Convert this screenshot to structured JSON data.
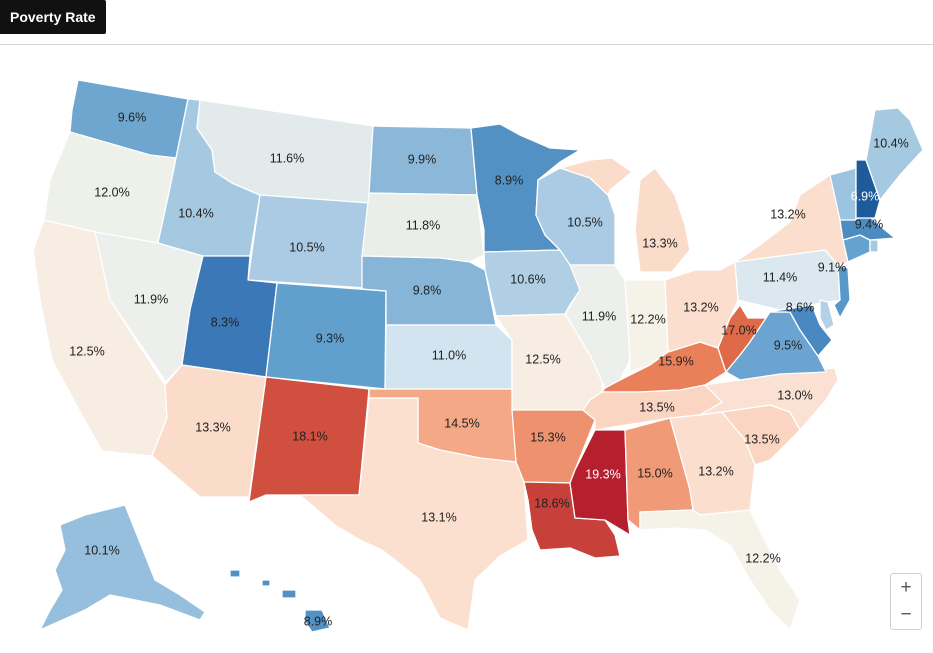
{
  "header": {
    "title": "Poverty Rate"
  },
  "map": {
    "metric": "Poverty Rate",
    "regions": [
      {
        "id": "WA",
        "value": 9.6,
        "label": "9.6%",
        "color": "#6ea6d0"
      },
      {
        "id": "OR",
        "value": 12.0,
        "label": "12.0%",
        "color": "#eef0ea"
      },
      {
        "id": "CA",
        "value": 12.5,
        "label": "12.5%",
        "color": "#f7ede3"
      },
      {
        "id": "NV",
        "value": 11.9,
        "label": "11.9%",
        "color": "#ecefeb"
      },
      {
        "id": "ID",
        "value": 10.4,
        "label": "10.4%",
        "color": "#a6c9e2"
      },
      {
        "id": "MT",
        "value": 11.6,
        "label": "11.6%",
        "color": "#e2eaec"
      },
      {
        "id": "WY",
        "value": 10.5,
        "label": "10.5%",
        "color": "#aacbe3"
      },
      {
        "id": "UT",
        "value": 8.3,
        "label": "8.3%",
        "color": "#3b78b7"
      },
      {
        "id": "AZ",
        "value": 13.3,
        "label": "13.3%",
        "color": "#fbdccb"
      },
      {
        "id": "CO",
        "value": 9.3,
        "label": "9.3%",
        "color": "#61a0cd"
      },
      {
        "id": "NM",
        "value": 18.1,
        "label": "18.1%",
        "color": "#d04f3e"
      },
      {
        "id": "ND",
        "value": 9.9,
        "label": "9.9%",
        "color": "#8bb8d9"
      },
      {
        "id": "SD",
        "value": 11.8,
        "label": "11.8%",
        "color": "#eaeee9"
      },
      {
        "id": "NE",
        "value": 9.8,
        "label": "9.8%",
        "color": "#86b5d8"
      },
      {
        "id": "KS",
        "value": 11.0,
        "label": "11.0%",
        "color": "#d2e4ef"
      },
      {
        "id": "OK",
        "value": 14.5,
        "label": "14.5%",
        "color": "#f4a886"
      },
      {
        "id": "TX",
        "value": 13.1,
        "label": "13.1%",
        "color": "#fbdfcf"
      },
      {
        "id": "MN",
        "value": 8.9,
        "label": "8.9%",
        "color": "#5391c5"
      },
      {
        "id": "IA",
        "value": 10.6,
        "label": "10.6%",
        "color": "#b0cfe5"
      },
      {
        "id": "MO",
        "value": 12.5,
        "label": "12.5%",
        "color": "#f7ede3"
      },
      {
        "id": "AR",
        "value": 15.3,
        "label": "15.3%",
        "color": "#ee916e"
      },
      {
        "id": "LA",
        "value": 18.6,
        "label": "18.6%",
        "color": "#c8403a"
      },
      {
        "id": "WI",
        "value": 10.5,
        "label": "10.5%",
        "color": "#aacbe3"
      },
      {
        "id": "IL",
        "value": 11.9,
        "label": "11.9%",
        "color": "#ecefeb"
      },
      {
        "id": "MS",
        "value": 19.3,
        "label": "19.3%",
        "color": "#b51f2e"
      },
      {
        "id": "MI",
        "value": 13.3,
        "label": "13.3%",
        "color": "#fbdccb"
      },
      {
        "id": "IN",
        "value": 12.2,
        "label": "12.2%",
        "color": "#f5f3e7"
      },
      {
        "id": "KY",
        "value": 15.9,
        "label": "15.9%",
        "color": "#ea8059"
      },
      {
        "id": "TN",
        "value": 13.5,
        "label": "13.5%",
        "color": "#fad5c2"
      },
      {
        "id": "AL",
        "value": 15.0,
        "label": "15.0%",
        "color": "#f09a77"
      },
      {
        "id": "OH",
        "value": 13.2,
        "label": "13.2%",
        "color": "#fbdecd"
      },
      {
        "id": "WV",
        "value": 17.0,
        "label": "17.0%",
        "color": "#de6a49"
      },
      {
        "id": "GA",
        "value": 13.2,
        "label": "13.2%",
        "color": "#fbdecd"
      },
      {
        "id": "FL",
        "value": 12.2,
        "label": "12.2%",
        "color": "#f5f3e7"
      },
      {
        "id": "SC",
        "value": 13.5,
        "label": "13.5%",
        "color": "#fad5c2"
      },
      {
        "id": "NC",
        "value": 13.0,
        "label": "13.0%",
        "color": "#fae1d3"
      },
      {
        "id": "VA",
        "value": 9.5,
        "label": "9.5%",
        "color": "#6ba4d0"
      },
      {
        "id": "PA",
        "value": 11.4,
        "label": "11.4%",
        "color": "#dbe8ef"
      },
      {
        "id": "NY",
        "value": 13.2,
        "label": "13.2%",
        "color": "#fbdecd"
      },
      {
        "id": "MD",
        "value": 8.6,
        "label": "8.6%",
        "color": "#4a88c1"
      },
      {
        "id": "NJ",
        "value": 9.1,
        "label": "9.1%",
        "color": "#5898c9"
      },
      {
        "id": "CT",
        "value": 9.4,
        "label": "9.4%",
        "color": "#66a2cf"
      },
      {
        "id": "NH",
        "value": 6.9,
        "label": "6.9%",
        "color": "#1d5b9a"
      },
      {
        "id": "ME",
        "value": 10.4,
        "label": "10.4%",
        "color": "#a6c9e2"
      },
      {
        "id": "AK",
        "value": 10.1,
        "label": "10.1%",
        "color": "#96bfdd"
      },
      {
        "id": "HI",
        "value": 8.9,
        "label": "8.9%",
        "color": "#5391c5"
      }
    ],
    "extra_shapes": [
      {
        "id": "VT",
        "color": "#9cc4e0"
      },
      {
        "id": "MA",
        "color": "#4d8cc3"
      },
      {
        "id": "RI",
        "color": "#a7cae2"
      },
      {
        "id": "DE",
        "color": "#b2d0e6"
      }
    ]
  },
  "controls": {
    "zoom_in_label": "+",
    "zoom_out_label": "−"
  }
}
